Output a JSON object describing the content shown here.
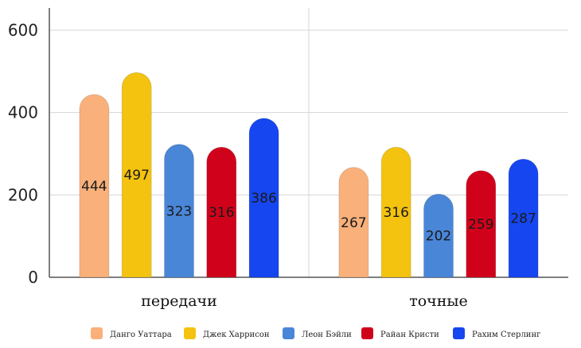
{
  "chart_data": {
    "type": "bar",
    "title": "",
    "xlabel": "",
    "ylabel": "",
    "ylim": [
      0,
      600
    ],
    "yticks": [
      0,
      200,
      400,
      600
    ],
    "grid": true,
    "legend_position": "bottom",
    "categories": [
      "передачи",
      "точные"
    ],
    "series": [
      {
        "name": "Данго Уаттара",
        "color": "#f9b07a",
        "values": [
          444,
          267
        ]
      },
      {
        "name": "Джек Харрисон",
        "color": "#f3c30f",
        "values": [
          497,
          316
        ]
      },
      {
        "name": "Леон Бэйли",
        "color": "#4a86d8",
        "values": [
          323,
          202
        ]
      },
      {
        "name": "Райан Кристи",
        "color": "#d0021b",
        "values": [
          316,
          259
        ]
      },
      {
        "name": "Рахим Стерлинг",
        "color": "#1546f0",
        "values": [
          386,
          287
        ]
      }
    ]
  }
}
